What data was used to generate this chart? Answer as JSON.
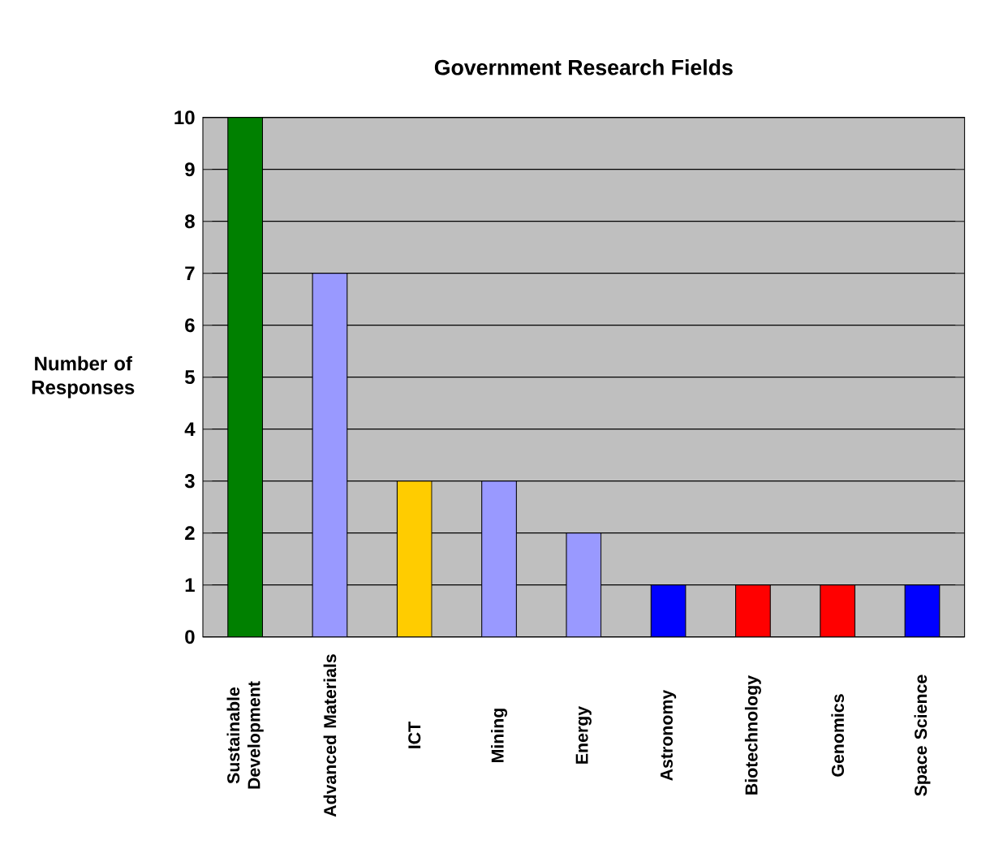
{
  "chart_data": {
    "type": "bar",
    "title": "Government Research Fields",
    "ylabel": "Number of Responses",
    "categories": [
      "Sustainable Development",
      "Advanced Materials",
      "ICT",
      "Mining",
      "Energy",
      "Astronomy",
      "Biotechnology",
      "Genomics",
      "Space Science"
    ],
    "values": [
      10,
      7,
      3,
      3,
      2,
      1,
      1,
      1,
      1
    ],
    "colors": [
      "#008000",
      "#9999ff",
      "#ffcc00",
      "#9999ff",
      "#9999ff",
      "#0000ff",
      "#ff0000",
      "#ff0000",
      "#0000ff"
    ],
    "ylim": [
      0,
      10
    ],
    "yticks": [
      0,
      1,
      2,
      3,
      4,
      5,
      6,
      7,
      8,
      9,
      10
    ],
    "grid": "y"
  }
}
